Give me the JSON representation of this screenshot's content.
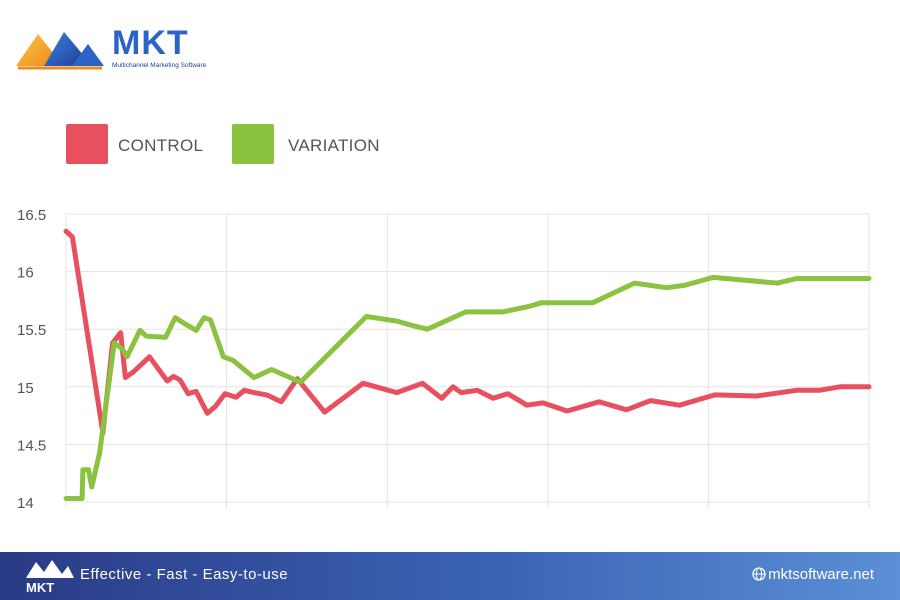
{
  "brand": {
    "name": "MKT",
    "tagline": "Multichannel Marketing Software",
    "slogan": "Effective - Fast - Easy-to-use",
    "website": "mktsoftware.net"
  },
  "chart_data": {
    "type": "line",
    "title": "",
    "xlabel": "",
    "ylabel": "",
    "ylim": [
      14,
      16.5
    ],
    "yticks": [
      "14",
      "14.5",
      "15",
      "15.5",
      "16",
      "16.5"
    ],
    "xlim": [
      0,
      50
    ],
    "grid": true,
    "legend_position": "top-left",
    "series": [
      {
        "name": "CONTROL",
        "color": "#e8505f",
        "x": [
          0,
          0.4,
          2.3,
          2.9,
          3.4,
          3.7,
          4.2,
          5.2,
          6.3,
          6.7,
          7.1,
          7.6,
          8.1,
          8.8,
          9.3,
          9.9,
          10.6,
          11.1,
          11.7,
          12.5,
          13.4,
          14.4,
          16.1,
          18.5,
          20.6,
          22.2,
          23.4,
          24.1,
          24.6,
          25.6,
          26.6,
          27.5,
          28.7,
          29.7,
          31.2,
          33.2,
          34.9,
          36.4,
          38.2,
          40.4,
          43.0,
          45.5,
          46.9,
          48.2,
          50.0
        ],
        "values": [
          16.35,
          16.3,
          14.6,
          15.38,
          15.47,
          15.08,
          15.13,
          15.26,
          15.05,
          15.09,
          15.06,
          14.94,
          14.96,
          14.77,
          14.83,
          14.94,
          14.91,
          14.97,
          14.95,
          14.93,
          14.87,
          15.07,
          14.78,
          15.03,
          14.95,
          15.03,
          14.9,
          15.0,
          14.95,
          14.97,
          14.9,
          14.94,
          14.84,
          14.86,
          14.79,
          14.87,
          14.8,
          14.88,
          14.84,
          14.93,
          14.92,
          14.97,
          14.97,
          15.0,
          15.0
        ]
      },
      {
        "name": "VARIATION",
        "color": "#8bc23f",
        "x": [
          0,
          1.0,
          1.05,
          1.4,
          1.6,
          2.1,
          3.0,
          3.5,
          3.8,
          4.6,
          5.0,
          6.2,
          6.8,
          7.6,
          8.1,
          8.6,
          9.0,
          9.8,
          10.4,
          11.7,
          12.8,
          14.6,
          18.7,
          20.6,
          21.6,
          22.5,
          24.9,
          26.0,
          27.2,
          28.9,
          29.6,
          30.3,
          32.8,
          35.4,
          37.4,
          38.5,
          40.3,
          44.3,
          45.5,
          50.0
        ],
        "values": [
          14.03,
          14.03,
          14.28,
          14.28,
          14.13,
          14.43,
          15.38,
          15.33,
          15.26,
          15.49,
          15.44,
          15.43,
          15.6,
          15.53,
          15.49,
          15.6,
          15.58,
          15.26,
          15.23,
          15.08,
          15.15,
          15.04,
          15.61,
          15.57,
          15.53,
          15.5,
          15.65,
          15.65,
          15.65,
          15.7,
          15.73,
          15.73,
          15.73,
          15.9,
          15.86,
          15.88,
          15.95,
          15.9,
          15.94,
          15.94
        ]
      }
    ]
  }
}
